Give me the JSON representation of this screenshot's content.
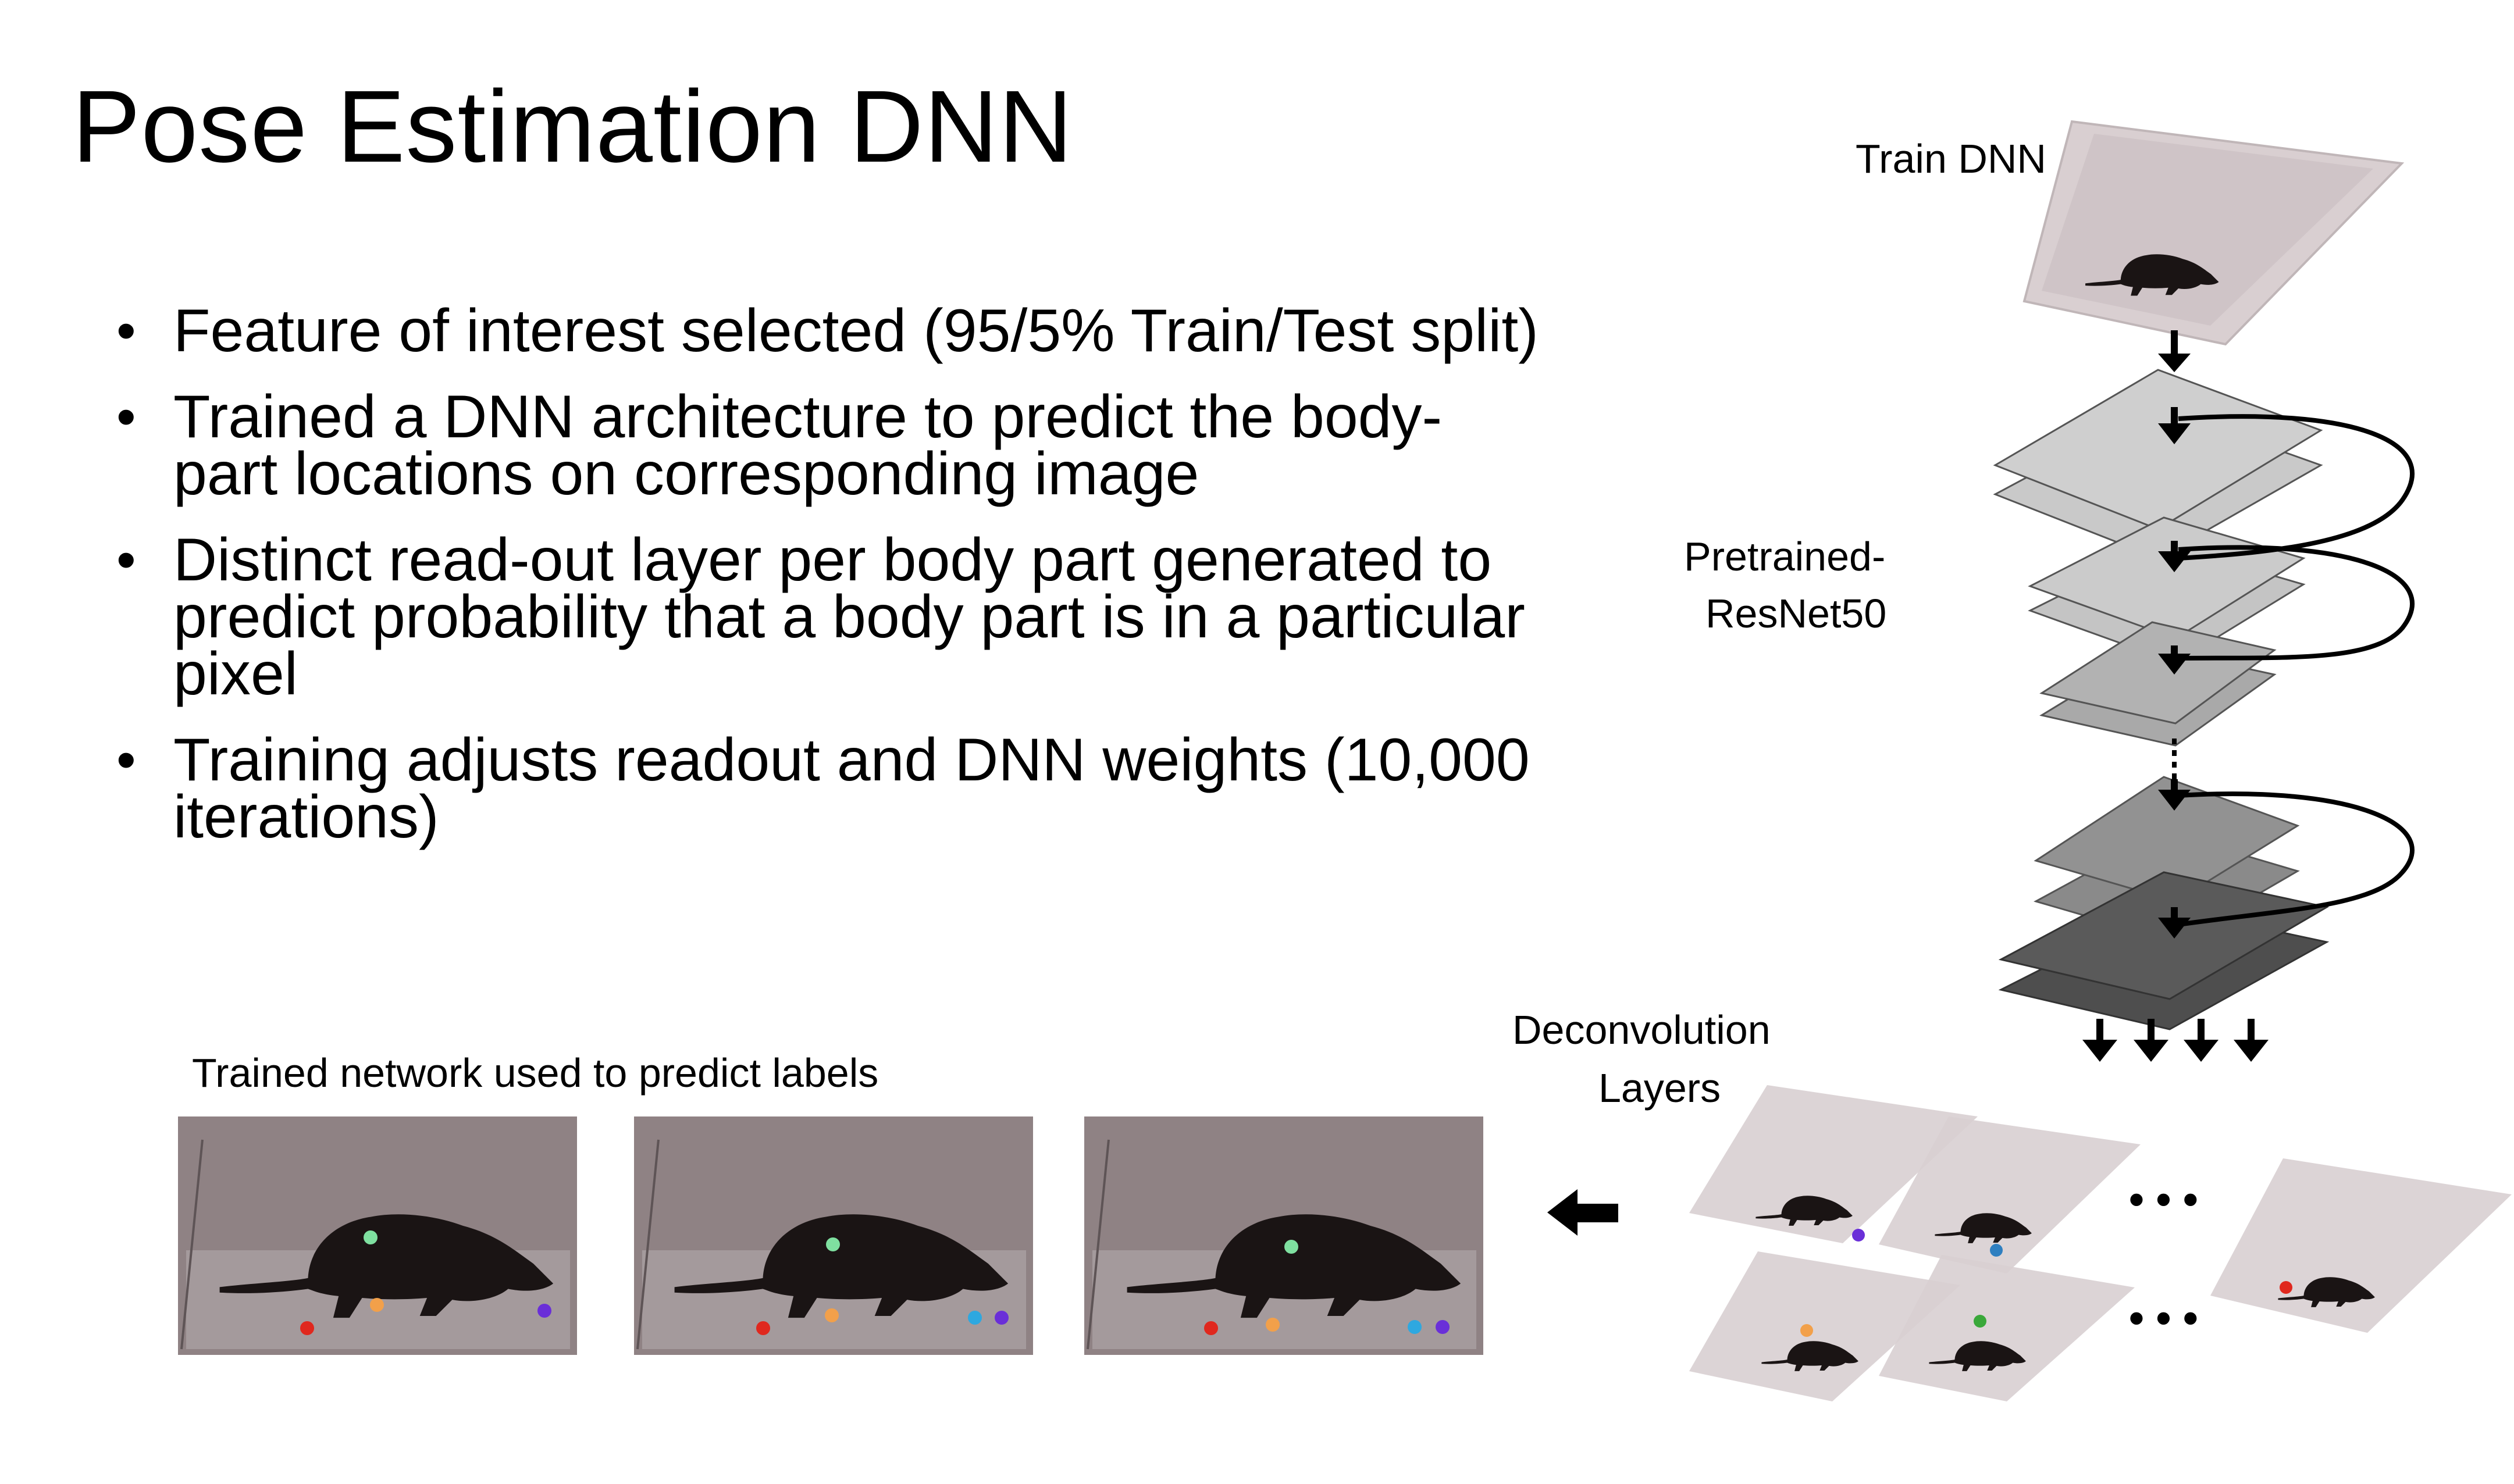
{
  "slide": {
    "title": "Pose Estimation DNN",
    "bullets": [
      "Feature of interest selected (95/5% Train/Test split)",
      "Trained a DNN architecture to predict the body-part locations on corresponding image",
      "Distinct read-out layer per body part generated to predict probability that a body part is in a particular pixel",
      "Training adjusts readout and DNN weights (10,000 iterations)"
    ]
  },
  "diagram": {
    "train_label": "Train DNN",
    "network_label_line1": "Pretrained-",
    "network_label_line2": "ResNet50",
    "deconv_label_line1": "Deconvolution",
    "deconv_label_line2": "Layers",
    "predict_label": "Trained network used to predict labels",
    "ellipsis": "• • •"
  },
  "colors": {
    "keypoint_tail": "#e0281e",
    "keypoint_paw": "#f2a04a",
    "keypoint_back": "#7fe0a0",
    "keypoint_nose": "#6a2fd8",
    "keypoint_snout": "#2ea8e0",
    "layer_light": "#c9c9c9",
    "layer_mid": "#9d9d9d",
    "layer_dark": "#5a5a5a",
    "photo_bg": "#8f8284"
  }
}
